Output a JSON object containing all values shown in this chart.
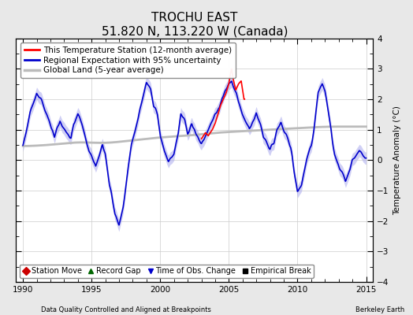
{
  "title": "TROCHU EAST",
  "subtitle": "51.820 N, 113.220 W (Canada)",
  "ylabel": "Temperature Anomaly (°C)",
  "xlabel_left": "Data Quality Controlled and Aligned at Breakpoints",
  "xlabel_right": "Berkeley Earth",
  "xlim": [
    1989.5,
    2015.5
  ],
  "ylim": [
    -4,
    4
  ],
  "yticks": [
    -4,
    -3,
    -2,
    -1,
    0,
    1,
    2,
    3,
    4
  ],
  "xticks": [
    1990,
    1995,
    2000,
    2005,
    2010,
    2015
  ],
  "legend_items": [
    {
      "label": "This Temperature Station (12-month average)",
      "color": "#FF0000",
      "lw": 1.2
    },
    {
      "label": "Regional Expectation with 95% uncertainty",
      "color": "#0000CC",
      "lw": 1.2
    },
    {
      "label": "Global Land (5-year average)",
      "color": "#BBBBBB",
      "lw": 2.0
    }
  ],
  "marker_legend": [
    {
      "label": "Station Move",
      "marker": "D",
      "color": "#CC0000",
      "ms": 5
    },
    {
      "label": "Record Gap",
      "marker": "^",
      "color": "#006600",
      "ms": 5
    },
    {
      "label": "Time of Obs. Change",
      "marker": "v",
      "color": "#0000CC",
      "ms": 5
    },
    {
      "label": "Empirical Break",
      "marker": "s",
      "color": "#000000",
      "ms": 4
    }
  ],
  "bg_color": "#E8E8E8",
  "plot_bg_color": "#FFFFFF",
  "grid_color": "#CCCCCC",
  "uncertainty_color": "#AAAAEE",
  "uncertainty_alpha": 0.55,
  "title_fontsize": 11,
  "subtitle_fontsize": 9,
  "label_fontsize": 7.5,
  "tick_fontsize": 7.5,
  "legend_fontsize": 7.5
}
